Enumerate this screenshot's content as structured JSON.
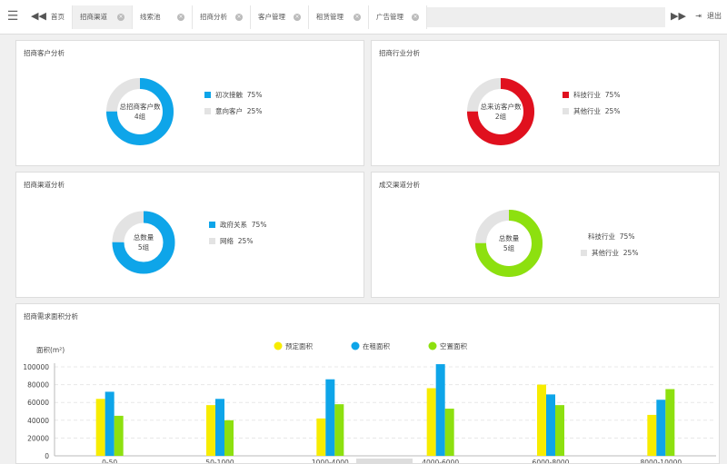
{
  "tabs": [
    "首页",
    "招商渠道",
    "线索池",
    "招商分析",
    "客户管理",
    "租赁管理",
    "广告管理"
  ],
  "logout_label": "退出",
  "panels": {
    "p1": {
      "title": "招商客户分析",
      "center1": "总招商客户数",
      "center2": "4组",
      "color": "#0ea5e9",
      "legend": [
        {
          "label": "初次接触",
          "pct": "75%"
        },
        {
          "label": "意向客户",
          "pct": "25%"
        }
      ]
    },
    "p2": {
      "title": "招商行业分析",
      "center1": "总来访客户数",
      "center2": "2组",
      "color": "#e0101e",
      "legend": [
        {
          "label": "科技行业",
          "pct": "75%"
        },
        {
          "label": "其他行业",
          "pct": "25%"
        }
      ]
    },
    "p3": {
      "title": "招商渠道分析",
      "center1": "总数量",
      "center2": "5组",
      "color": "#0ea5e9",
      "legend": [
        {
          "label": "政府关系",
          "pct": "75%"
        },
        {
          "label": "网络",
          "pct": "25%"
        }
      ]
    },
    "p4": {
      "title": "成交渠道分析",
      "center1": "总数量",
      "center2": "5组",
      "color": "#8de00f",
      "legend": [
        {
          "label": "科技行业",
          "pct": "75%"
        },
        {
          "label": "其他行业",
          "pct": "25%"
        }
      ]
    }
  },
  "chart_title": "招商需求面积分析",
  "chart_data": {
    "type": "bar",
    "ylabel": "面积(m²)",
    "ylim": [
      0,
      100000
    ],
    "yticks": [
      "0",
      "20000",
      "40000",
      "60000",
      "80000",
      "100000"
    ],
    "categories": [
      "0-50",
      "50-1000",
      "1000-4000",
      "4000-6000",
      "6000-8000",
      "8000-10000"
    ],
    "series": [
      {
        "name": "预定面积",
        "color": "#f7ec00",
        "values": [
          64000,
          57000,
          42000,
          76000,
          80000,
          46000
        ]
      },
      {
        "name": "在租面积",
        "color": "#0ea5e9",
        "values": [
          72000,
          64000,
          86000,
          103000,
          69000,
          63000
        ]
      },
      {
        "name": "空置面积",
        "color": "#8de00f",
        "values": [
          45000,
          40000,
          58000,
          53000,
          57000,
          75000
        ]
      }
    ]
  }
}
